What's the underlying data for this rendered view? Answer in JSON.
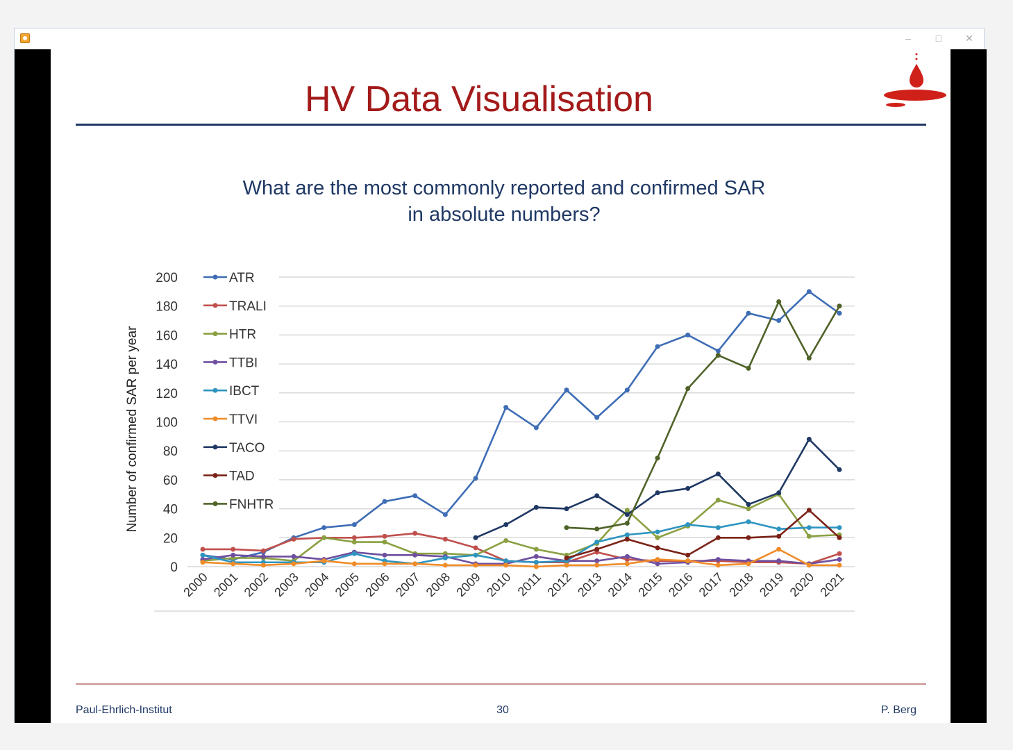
{
  "window": {
    "minimize_icon": "minimize-icon",
    "maximize_icon": "maximize-icon",
    "close_icon": "close-icon"
  },
  "slide": {
    "title": "HV Data Visualisation",
    "question_line1": "What are the most commonly reported and confirmed SAR",
    "question_line2": "in absolute numbers?",
    "footer_left": "Paul-Ehrlich-Institut",
    "page_number": "30",
    "footer_right": "P. Berg",
    "title_color": "#a31a1a",
    "rule_color": "#1f3864"
  },
  "chart_data": {
    "type": "line",
    "ylabel": "Number of confirmed SAR per year",
    "ylim": [
      0,
      200
    ],
    "yticks": [
      0,
      20,
      40,
      60,
      80,
      100,
      120,
      140,
      160,
      180,
      200
    ],
    "grid": true,
    "legend_position": "top-left",
    "categories": [
      "2000",
      "2001",
      "2002",
      "2003",
      "2004",
      "2005",
      "2006",
      "2007",
      "2008",
      "2009",
      "2010",
      "2011",
      "2012",
      "2013",
      "2014",
      "2015",
      "2016",
      "2017",
      "2018",
      "2019",
      "2020",
      "2021"
    ],
    "series": [
      {
        "name": "ATR",
        "color": "#3e6db5",
        "values": [
          8,
          5,
          10,
          20,
          27,
          29,
          45,
          49,
          36,
          61,
          110,
          96,
          122,
          103,
          122,
          152,
          160,
          149,
          175,
          170,
          190,
          175
        ]
      },
      {
        "name": "TRALI",
        "color": "#c0504d",
        "values": [
          12,
          12,
          11,
          19,
          20,
          20,
          21,
          23,
          19,
          13,
          4,
          3,
          3,
          10,
          5,
          4,
          4,
          4,
          3,
          3,
          2,
          9
        ]
      },
      {
        "name": "HTR",
        "color": "#8aa042",
        "values": [
          4,
          6,
          6,
          4,
          20,
          17,
          17,
          9,
          9,
          8,
          18,
          12,
          8,
          16,
          39,
          20,
          28,
          46,
          40,
          50,
          21,
          22
        ]
      },
      {
        "name": "TTBI",
        "color": "#6f4fa0",
        "values": [
          5,
          8,
          7,
          7,
          5,
          10,
          8,
          8,
          7,
          2,
          2,
          7,
          4,
          4,
          7,
          2,
          3,
          5,
          4,
          4,
          2,
          5
        ]
      },
      {
        "name": "IBCT",
        "color": "#2e94c0",
        "values": [
          8,
          3,
          3,
          3,
          3,
          9,
          4,
          2,
          6,
          8,
          4,
          3,
          4,
          17,
          22,
          24,
          29,
          27,
          31,
          26,
          27,
          27
        ]
      },
      {
        "name": "TTVI",
        "color": "#f08c28",
        "values": [
          3,
          2,
          1,
          2,
          4,
          2,
          2,
          2,
          1,
          1,
          1,
          0,
          1,
          1,
          2,
          5,
          4,
          1,
          2,
          12,
          1,
          1
        ]
      },
      {
        "name": "TACO",
        "color": "#1f3864",
        "values": [
          null,
          null,
          null,
          null,
          null,
          null,
          null,
          null,
          null,
          20,
          29,
          41,
          40,
          49,
          36,
          51,
          54,
          64,
          43,
          51,
          88,
          67
        ]
      },
      {
        "name": "TAD",
        "color": "#7b2318",
        "values": [
          null,
          null,
          null,
          null,
          null,
          null,
          null,
          null,
          null,
          null,
          null,
          null,
          6,
          12,
          19,
          13,
          8,
          20,
          20,
          21,
          39,
          20
        ]
      },
      {
        "name": "FNHTR",
        "color": "#4f6228",
        "values": [
          null,
          null,
          null,
          null,
          null,
          null,
          null,
          null,
          null,
          null,
          null,
          null,
          27,
          26,
          30,
          75,
          123,
          146,
          137,
          183,
          144,
          180
        ]
      }
    ]
  }
}
